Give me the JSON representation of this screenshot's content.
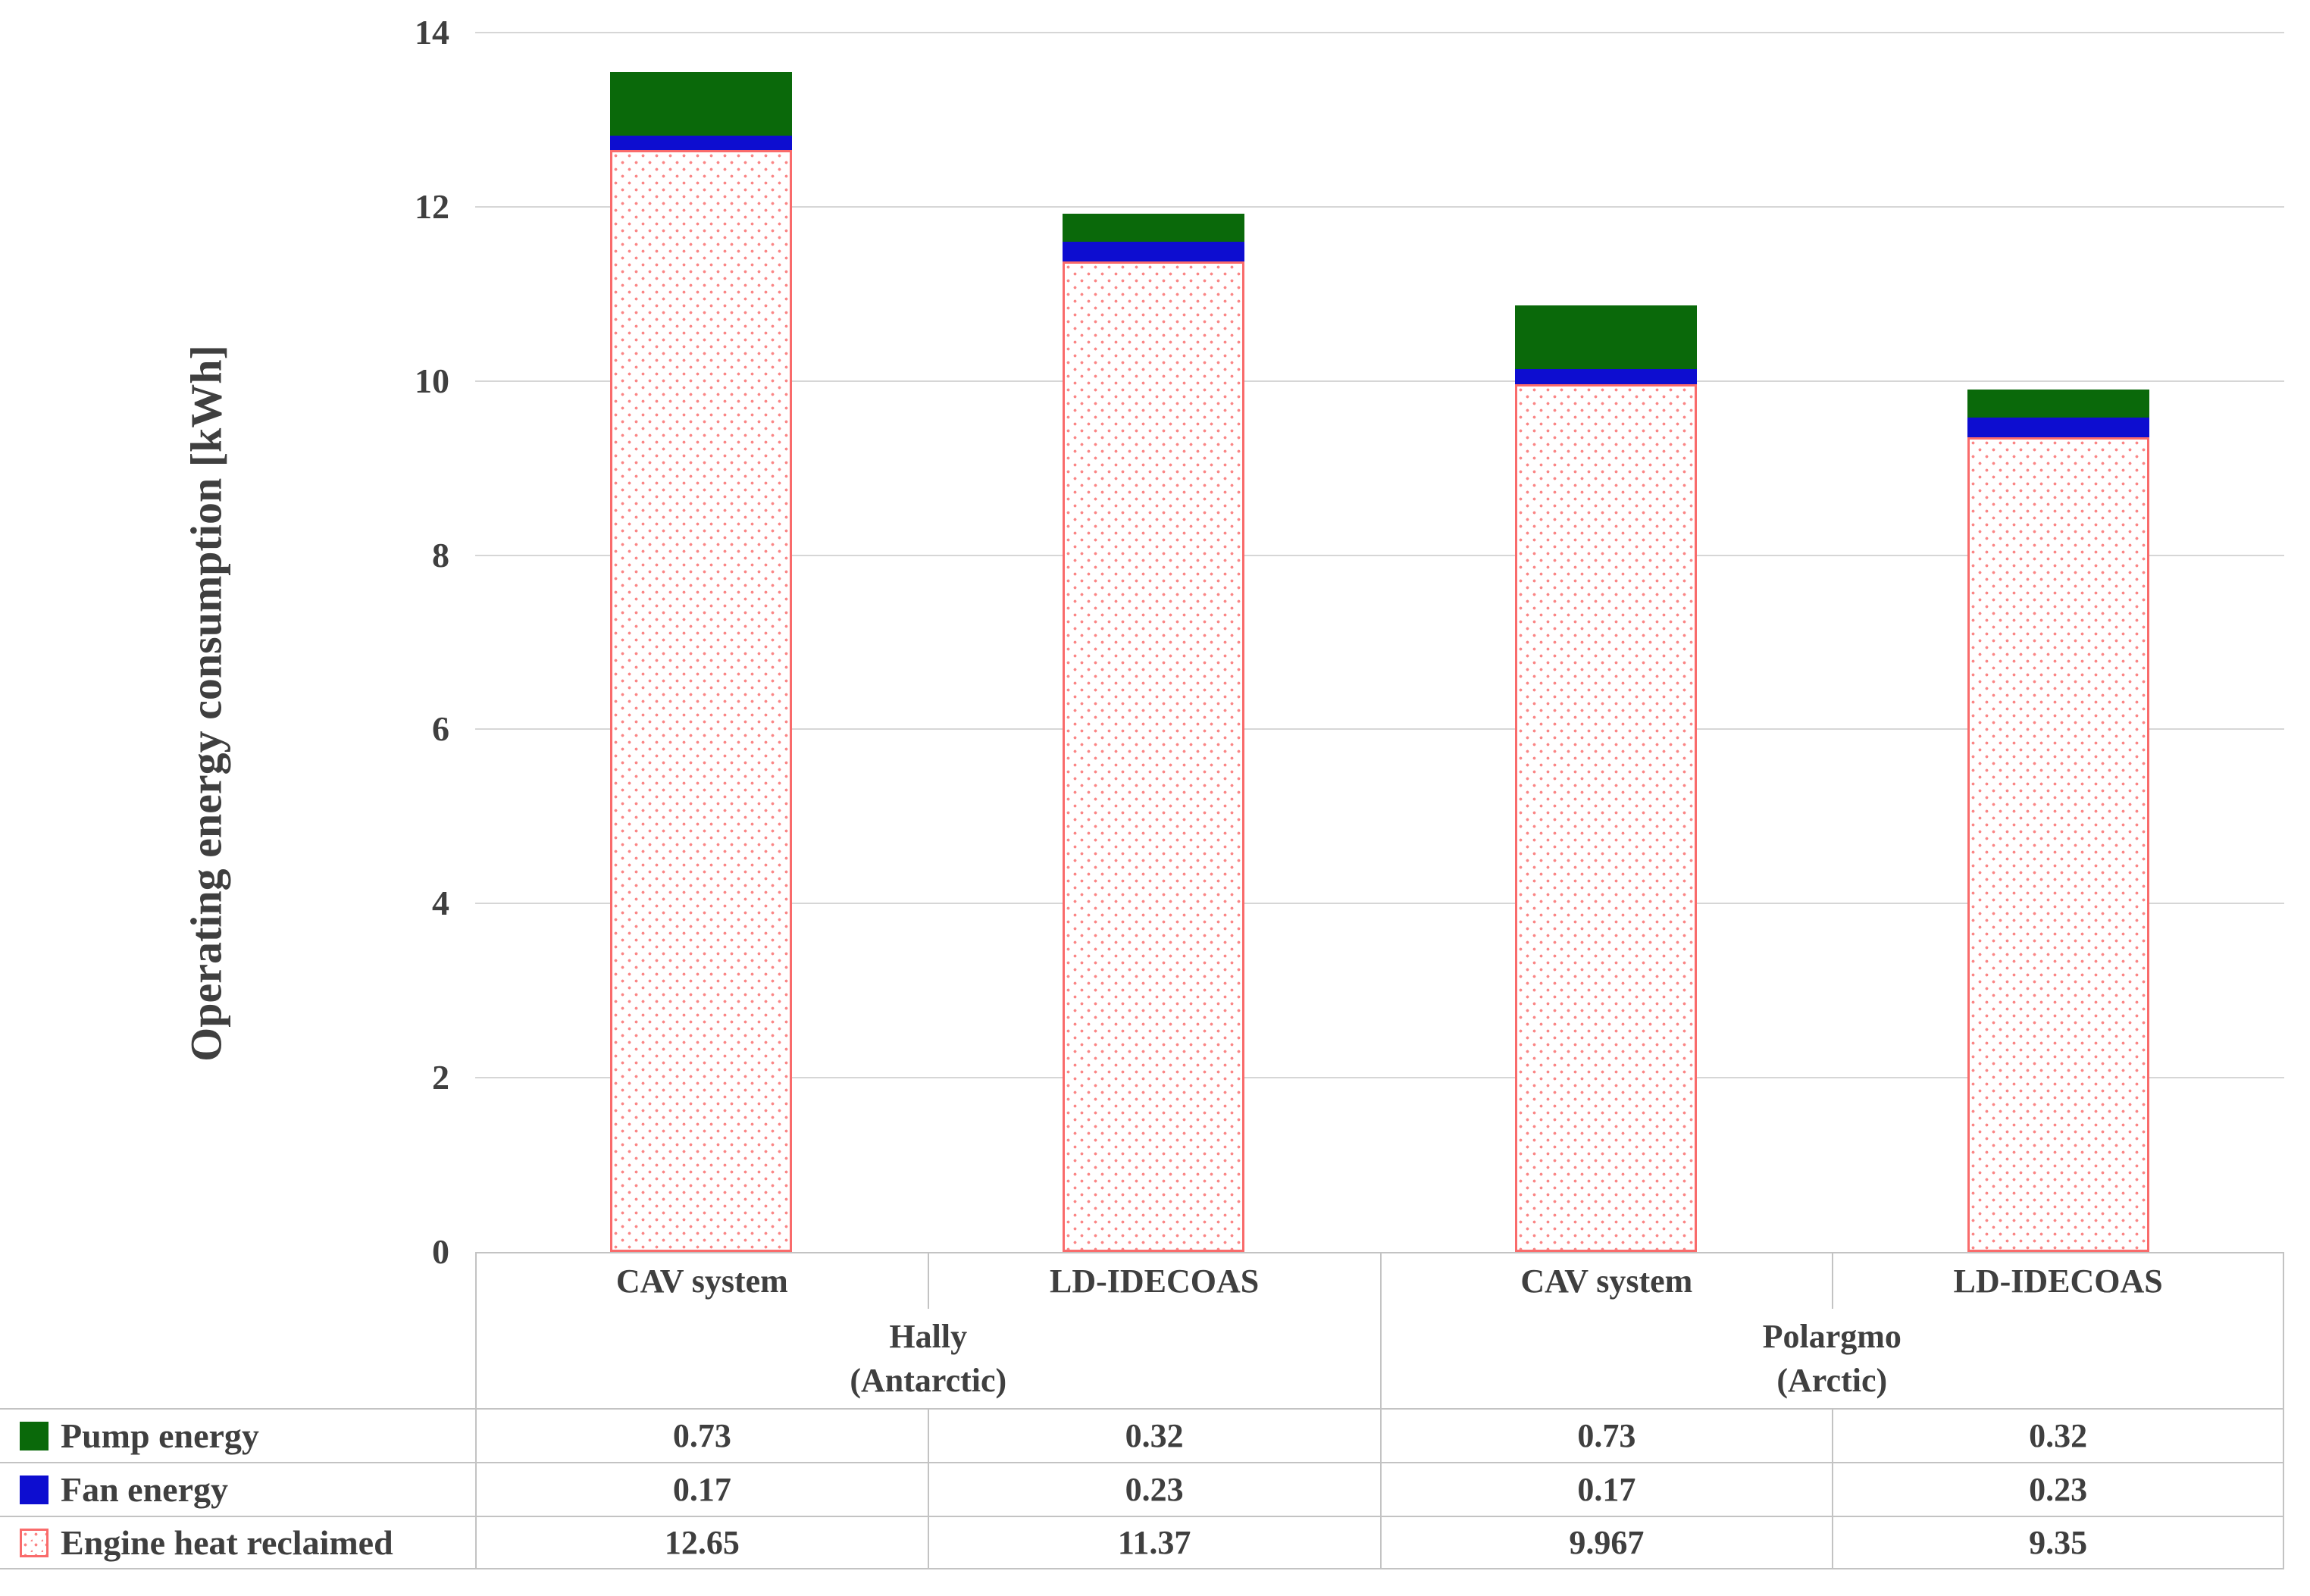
{
  "chart_data": {
    "type": "bar",
    "stacked": true,
    "ylabel": "Operating energy consumption [kWh]",
    "ylim": [
      0,
      14
    ],
    "ytick_step": 2,
    "ytick_labels": [
      "14",
      "12",
      "10",
      "8",
      "6",
      "4",
      "2",
      "0"
    ],
    "grid": true,
    "legend_position": "table-left",
    "categories": [
      "CAV system",
      "LD-IDECOAS",
      "CAV system",
      "LD-IDECOAS"
    ],
    "group_labels": [
      {
        "name": "Hally",
        "region": "(Antarctic)",
        "category_indexes": [
          0,
          1
        ]
      },
      {
        "name": "Polargmo",
        "region": "(Arctic)",
        "category_indexes": [
          2,
          3
        ]
      }
    ],
    "series": [
      {
        "name": "Pump energy",
        "values": [
          0.73,
          0.32,
          0.73,
          0.32
        ],
        "color": "#0a690a",
        "pattern": "solid"
      },
      {
        "name": "Fan energy",
        "values": [
          0.17,
          0.23,
          0.17,
          0.23
        ],
        "color": "#0d0dd0",
        "pattern": "solid"
      },
      {
        "name": "Engine heat reclaimed",
        "values": [
          12.65,
          11.37,
          9.967,
          9.35
        ],
        "color": "#f96b6b",
        "dot_color": "#fa8585",
        "fill": "#ffffff",
        "pattern": "dots"
      }
    ]
  },
  "table": {
    "col_headers": [
      "CAV system",
      "LD-IDECOAS",
      "CAV system",
      "LD-IDECOAS"
    ],
    "rows": [
      {
        "label": "Pump energy",
        "values": [
          "0.73",
          "0.32",
          "0.73",
          "0.32"
        ]
      },
      {
        "label": "Fan energy",
        "values": [
          "0.17",
          "0.23",
          "0.17",
          "0.23"
        ]
      },
      {
        "label": "Engine heat reclaimed",
        "values": [
          "12.65",
          "11.37",
          "9.967",
          "9.35"
        ]
      }
    ]
  },
  "colors": {
    "text": "#3f3f3f",
    "gridline": "#d6d6d6",
    "table_border": "#c3c3c3"
  }
}
